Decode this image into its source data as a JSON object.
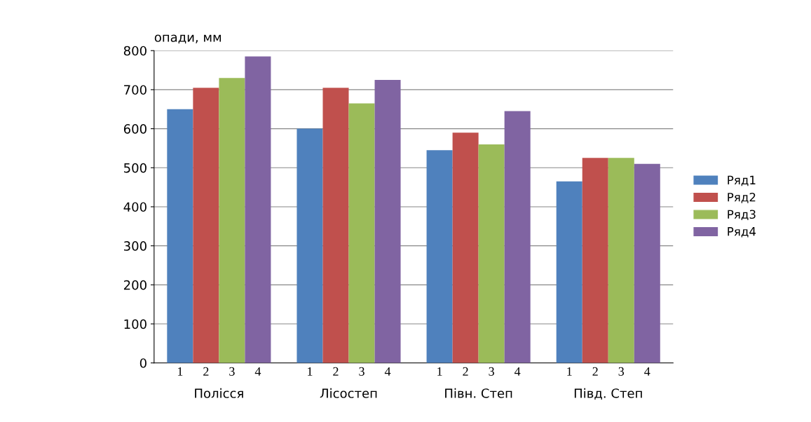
{
  "chart_data": {
    "type": "bar",
    "ylabel": "опади, мм",
    "categories": [
      "Полісся",
      "Лісостеп",
      "Півн. Степ",
      "Півд. Степ"
    ],
    "series": [
      {
        "name": "Ряд1",
        "color": "#4f81bd",
        "values": [
          650,
          600,
          545,
          465
        ]
      },
      {
        "name": "Ряд2",
        "color": "#c0504d",
        "values": [
          705,
          705,
          590,
          525
        ]
      },
      {
        "name": "Ряд3",
        "color": "#9bbb59",
        "values": [
          730,
          665,
          560,
          525
        ]
      },
      {
        "name": "Ряд4",
        "color": "#8064a2",
        "values": [
          785,
          725,
          645,
          510
        ]
      }
    ],
    "annotations": [
      "1",
      "2",
      "3",
      "4",
      "1",
      "2",
      "3",
      "4",
      "1",
      "2",
      "3",
      "4",
      "1",
      "2",
      "3",
      "4"
    ],
    "ylim": [
      0,
      800
    ],
    "yticks": [
      0,
      100,
      200,
      300,
      400,
      500,
      600,
      700,
      800
    ],
    "grid": "y",
    "legend": "right"
  }
}
